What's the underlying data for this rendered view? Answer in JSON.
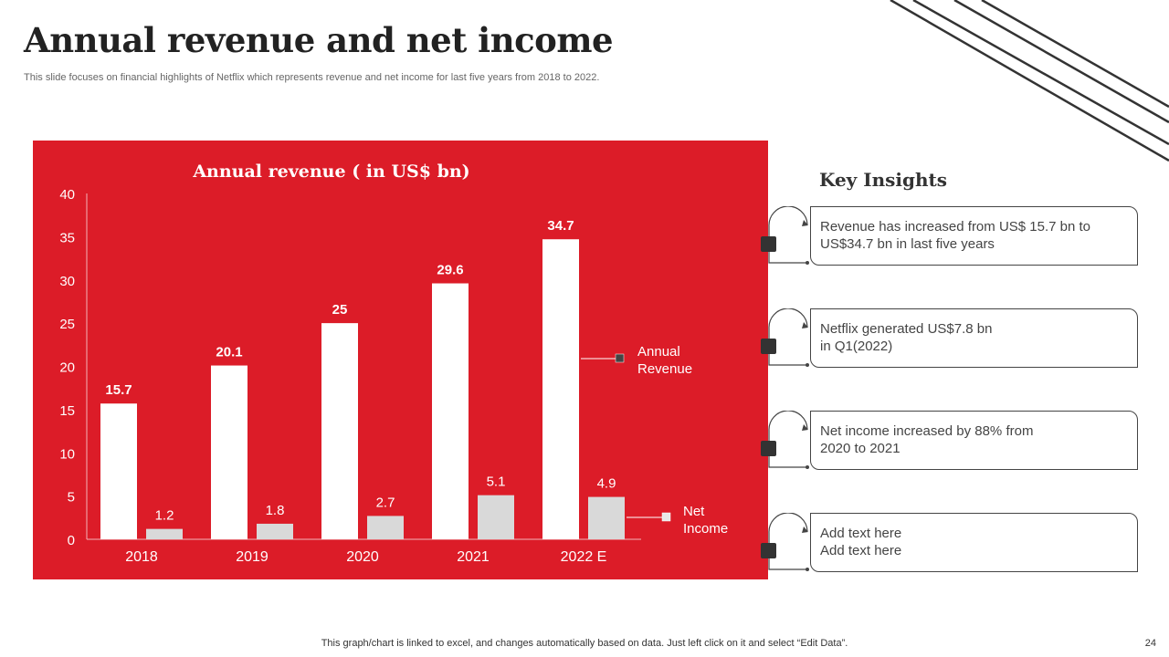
{
  "title": "Annual revenue and net income",
  "subtitle": "This slide focuses on financial highlights of Netflix which represents revenue and net income for last five years from 2018 to 2022.",
  "colors": {
    "panel": "#dc1c28",
    "revenue_bar": "#ffffff",
    "income_bar": "#d9d9d9",
    "text_dark": "#333333"
  },
  "chart_data": {
    "type": "bar",
    "title": "Annual revenue ( in US$ bn)",
    "categories": [
      "2018",
      "2019",
      "2020",
      "2021",
      "2022 E"
    ],
    "series": [
      {
        "name": "Annual Revenue",
        "values": [
          15.7,
          20.1,
          25,
          29.6,
          34.7
        ]
      },
      {
        "name": "Net Income",
        "values": [
          1.2,
          1.8,
          2.7,
          5.1,
          4.9
        ]
      }
    ],
    "value_labels": [
      [
        "15.7",
        "20.1",
        "25",
        "29.6",
        "34.7"
      ],
      [
        "1.2",
        "1.8",
        "2.7",
        "5.1",
        "4.9"
      ]
    ],
    "ylim": [
      0,
      40
    ],
    "yticks": [
      0,
      5,
      10,
      15,
      20,
      25,
      30,
      35,
      40
    ],
    "legend": [
      [
        "Annual",
        "Revenue"
      ],
      [
        "Net",
        "Income"
      ]
    ],
    "xlabel": "",
    "ylabel": "",
    "grid": false
  },
  "insights": {
    "title": "Key Insights",
    "items": [
      "Revenue  has increased from US$ 15.7 bn to\nUS$34.7 bn  in last five years",
      "Netflix  generated US$7.8 bn\nin Q1(2022)",
      "Net income increased by 88% from\n2020 to 2021",
      "Add text here\nAdd text here"
    ]
  },
  "footer": "This graph/chart is linked to excel,  and changes automatically based on data. Just left click on it and select “Edit Data”.",
  "page_number": "24"
}
